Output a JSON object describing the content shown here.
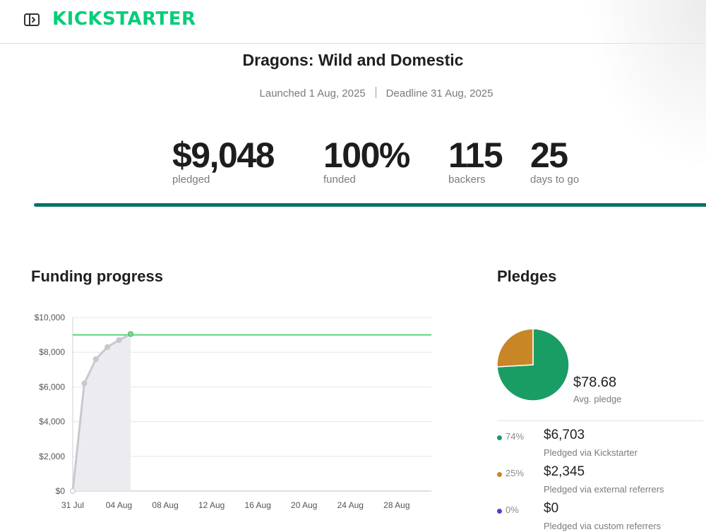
{
  "header": {
    "brand": "KICKSTARTER"
  },
  "project": {
    "title": "Dragons: Wild and Domestic",
    "launched": "Launched 1 Aug, 2025",
    "deadline": "Deadline 31 Aug, 2025"
  },
  "stats": [
    {
      "value": "$9,048",
      "label": "pledged"
    },
    {
      "value": "100%",
      "label": "funded"
    },
    {
      "value": "115",
      "label": "backers"
    },
    {
      "value": "25",
      "label": "days to go"
    }
  ],
  "funding_progress": {
    "title": "Funding progress"
  },
  "pledges": {
    "title": "Pledges",
    "avg_value": "$78.68",
    "avg_label": "Avg. pledge",
    "sources": [
      {
        "pct": "74%",
        "amount": "$6,703",
        "desc": "Pledged via Kickstarter",
        "color": "#1a9d64"
      },
      {
        "pct": "25%",
        "amount": "$2,345",
        "desc": "Pledged via external referrers",
        "color": "#c88626"
      },
      {
        "pct": "0%",
        "amount": "$0",
        "desc": "Pledged via custom referrers",
        "color": "#4a41d6"
      }
    ]
  },
  "colors": {
    "brand": "#05ce78",
    "progress_bar": "#037362",
    "goal_line": "#5ad27a",
    "series_line": "#c9c8cf",
    "area_fill": "#ececf0"
  },
  "chart_data": [
    {
      "type": "area",
      "title": "Funding progress",
      "x_ticks": [
        "31 Jul",
        "04 Aug",
        "08 Aug",
        "12 Aug",
        "16 Aug",
        "20 Aug",
        "24 Aug",
        "28 Aug"
      ],
      "y_ticks": [
        "$0",
        "$2,000",
        "$4,000",
        "$6,000",
        "$8,000",
        "$10,000"
      ],
      "ylim": [
        0,
        10000
      ],
      "xlim": [
        "2025-07-31",
        "2025-08-31"
      ],
      "goal": 9000,
      "grid": true,
      "x": [
        "2025-07-31",
        "2025-08-01",
        "2025-08-02",
        "2025-08-03",
        "2025-08-04",
        "2025-08-05"
      ],
      "values": [
        0,
        6200,
        7600,
        8300,
        8700,
        9048
      ]
    },
    {
      "type": "pie",
      "title": "Pledges",
      "categories": [
        "Pledged via Kickstarter",
        "Pledged via external referrers",
        "Pledged via custom referrers"
      ],
      "values": [
        6703,
        2345,
        0
      ],
      "colors": [
        "#1a9d64",
        "#c88626",
        "#4a41d6"
      ]
    }
  ]
}
